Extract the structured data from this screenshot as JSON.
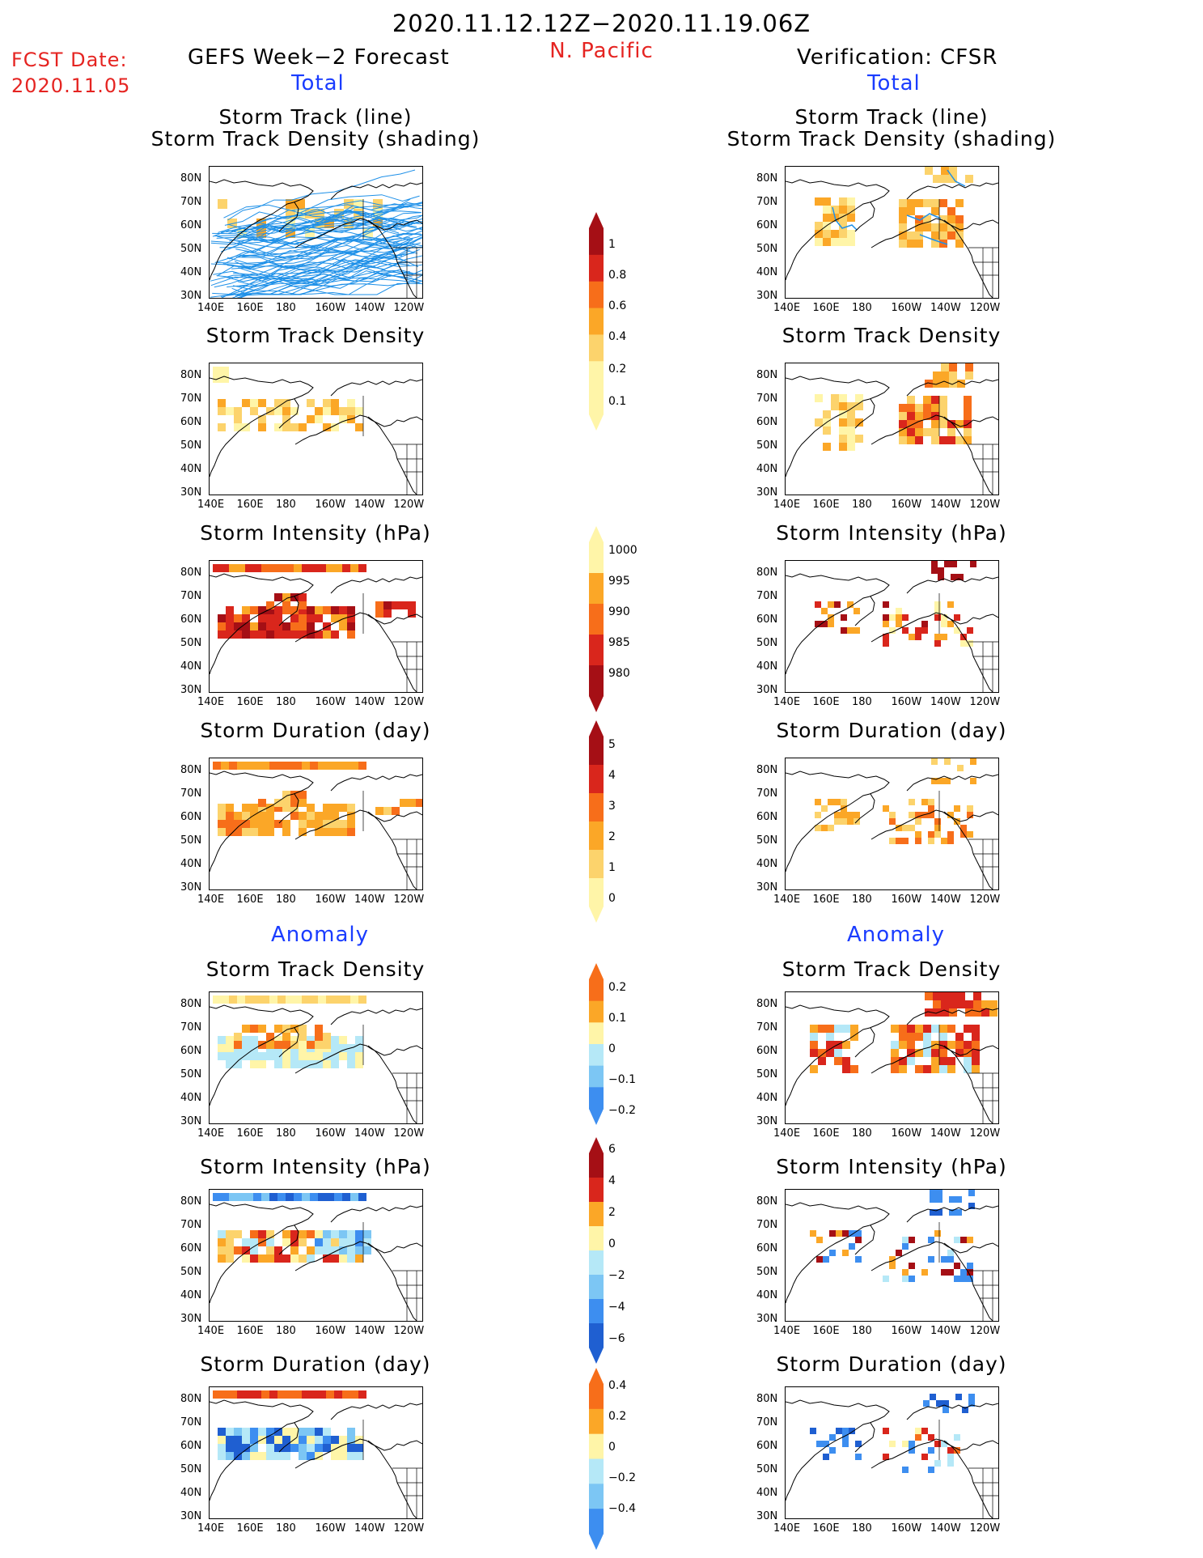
{
  "header": {
    "period": "2020.11.12.12Z−2020.11.19.06Z",
    "region": "N. Pacific",
    "fcst_label": "FCST Date:",
    "fcst_date": "2020.11.05",
    "left_heading": "GEFS Week−2 Forecast",
    "right_heading": "Verification: CFSR",
    "total_label": "Total",
    "anomaly_label": "Anomaly"
  },
  "axes": {
    "lat_ticks": [
      "80N",
      "70N",
      "60N",
      "50N",
      "40N",
      "30N"
    ],
    "lon_ticks": [
      "140E",
      "160E",
      "180",
      "160W",
      "140W",
      "120W"
    ]
  },
  "colors": {
    "yellow": "#fff5a8",
    "lightorange": "#fcd36c",
    "orange": "#fba727",
    "darkorange": "#f76e1a",
    "red": "#d9261c",
    "darkred": "#a50f15",
    "track_line": "#1e90e8",
    "lightblue": "#b5e8f7",
    "midblue": "#7cc6f4",
    "blue": "#3d8ef0",
    "darkblue": "#1f5fd1"
  },
  "chart_data": [
    {
      "id": "fc_track",
      "type": "heatmap",
      "title": "Storm Track (line)",
      "subtitle": "Storm Track Density (shading)",
      "side": "GEFS Week-2 Forecast",
      "section": "Total"
    },
    {
      "id": "ob_track",
      "type": "heatmap",
      "title": "Storm Track (line)",
      "subtitle": "Storm Track Density (shading)",
      "side": "Verification: CFSR",
      "section": "Total"
    },
    {
      "id": "fc_density",
      "type": "heatmap",
      "title": "Storm Track Density",
      "side": "GEFS Week-2 Forecast",
      "section": "Total"
    },
    {
      "id": "ob_density",
      "type": "heatmap",
      "title": "Storm Track Density",
      "side": "Verification: CFSR",
      "section": "Total"
    },
    {
      "id": "fc_intensity",
      "type": "heatmap",
      "title": "Storm Intensity (hPa)",
      "side": "GEFS Week-2 Forecast",
      "section": "Total"
    },
    {
      "id": "ob_intensity",
      "type": "heatmap",
      "title": "Storm Intensity (hPa)",
      "side": "Verification: CFSR",
      "section": "Total"
    },
    {
      "id": "fc_duration",
      "type": "heatmap",
      "title": "Storm Duration (day)",
      "side": "GEFS Week-2 Forecast",
      "section": "Total"
    },
    {
      "id": "ob_duration",
      "type": "heatmap",
      "title": "Storm Duration (day)",
      "side": "Verification: CFSR",
      "section": "Total"
    },
    {
      "id": "fc_density_anom",
      "type": "heatmap",
      "title": "Storm Track Density",
      "side": "GEFS Week-2 Forecast",
      "section": "Anomaly"
    },
    {
      "id": "ob_density_anom",
      "type": "heatmap",
      "title": "Storm Track Density",
      "side": "Verification: CFSR",
      "section": "Anomaly"
    },
    {
      "id": "fc_intensity_anom",
      "type": "heatmap",
      "title": "Storm Intensity (hPa)",
      "side": "GEFS Week-2 Forecast",
      "section": "Anomaly"
    },
    {
      "id": "ob_intensity_anom",
      "type": "heatmap",
      "title": "Storm Intensity (hPa)",
      "side": "Verification: CFSR",
      "section": "Anomaly"
    },
    {
      "id": "fc_duration_anom",
      "type": "heatmap",
      "title": "Storm Duration (day)",
      "side": "GEFS Week-2 Forecast",
      "section": "Anomaly"
    },
    {
      "id": "ob_duration_anom",
      "type": "heatmap",
      "title": "Storm Duration (day)",
      "side": "Verification: CFSR",
      "section": "Anomaly"
    }
  ],
  "colorbars": [
    {
      "id": "cb_density",
      "labels": [
        "1",
        "0.8",
        "0.6",
        "0.4",
        "0.2",
        "0.1"
      ]
    },
    {
      "id": "cb_intensity",
      "labels": [
        "1000",
        "995",
        "990",
        "985",
        "980"
      ]
    },
    {
      "id": "cb_duration",
      "labels": [
        "5",
        "4",
        "3",
        "2",
        "1",
        "0"
      ]
    },
    {
      "id": "cb_density_anom",
      "labels": [
        "0.2",
        "0.1",
        "0",
        "−0.1",
        "−0.2"
      ]
    },
    {
      "id": "cb_intensity_anom",
      "labels": [
        "6",
        "4",
        "2",
        "0",
        "−2",
        "−4",
        "−6"
      ]
    },
    {
      "id": "cb_duration_anom",
      "labels": [
        "0.4",
        "0.2",
        "0",
        "−0.2",
        "−0.4"
      ]
    }
  ]
}
